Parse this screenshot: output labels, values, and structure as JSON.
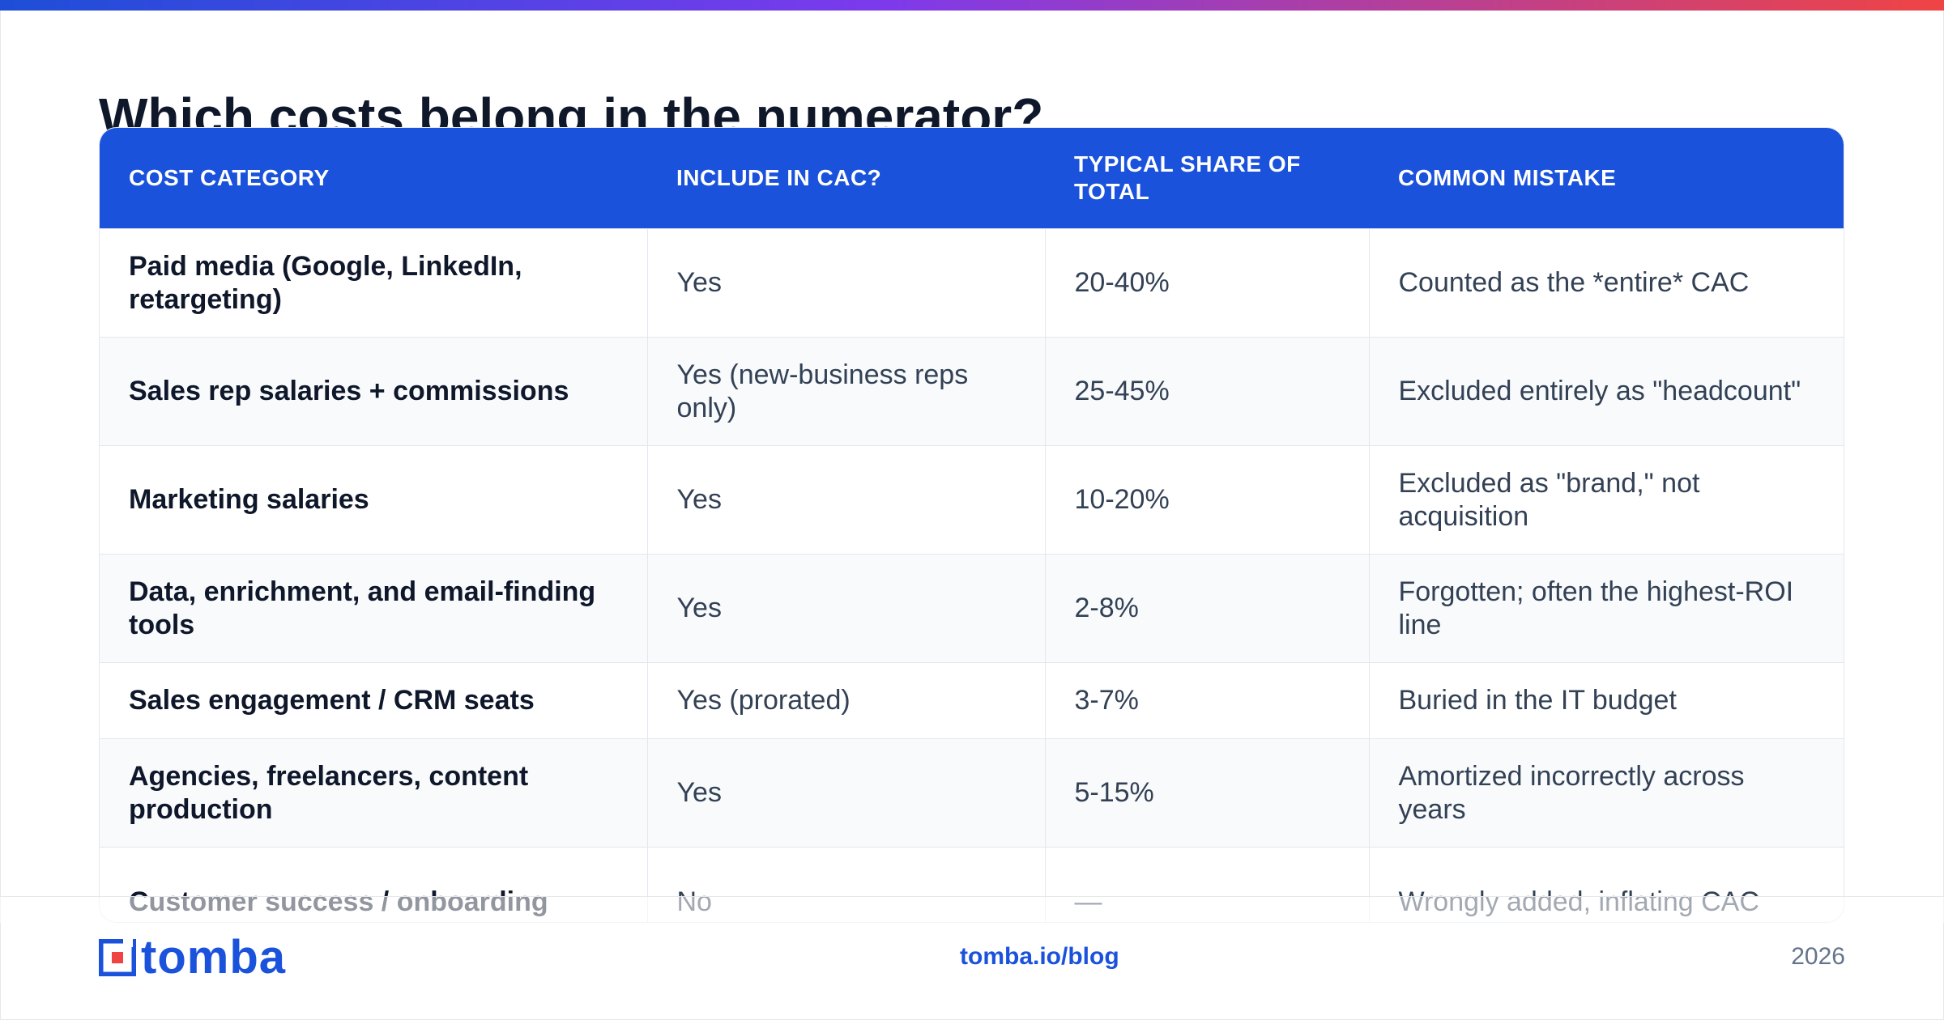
{
  "accent_gradient": [
    "#1d4ed8",
    "#7c3aed",
    "#ef4444"
  ],
  "colors": {
    "brand_blue": "#1a52dc",
    "title": "#0f172a",
    "muted": "#64748b"
  },
  "page": {
    "title": "Which costs belong in the numerator?"
  },
  "table": {
    "headers": [
      "COST CATEGORY",
      "INCLUDE IN CAC?",
      "TYPICAL SHARE OF TOTAL",
      "COMMON MISTAKE"
    ],
    "rows": [
      [
        "Paid media (Google, LinkedIn, retargeting)",
        "Yes",
        "20-40%",
        "Counted as the *entire* CAC"
      ],
      [
        "Sales rep salaries + commissions",
        "Yes (new-business reps only)",
        "25-45%",
        "Excluded entirely as \"headcount\""
      ],
      [
        "Marketing salaries",
        "Yes",
        "10-20%",
        "Excluded as \"brand,\" not acquisition"
      ],
      [
        "Data, enrichment, and email-finding tools",
        "Yes",
        "2-8%",
        "Forgotten; often the highest-ROI line"
      ],
      [
        "Sales engagement / CRM seats",
        "Yes (prorated)",
        "3-7%",
        "Buried in the IT budget"
      ],
      [
        "Agencies, freelancers, content production",
        "Yes",
        "5-15%",
        "Amortized incorrectly across years"
      ],
      [
        "Customer success / onboarding",
        "No",
        "—",
        "Wrongly added, inflating CAC"
      ]
    ]
  },
  "footer": {
    "logo_text": "tomba",
    "logo_icon": "tomba-logo-icon",
    "link": "tomba.io/blog",
    "year": "2026"
  }
}
